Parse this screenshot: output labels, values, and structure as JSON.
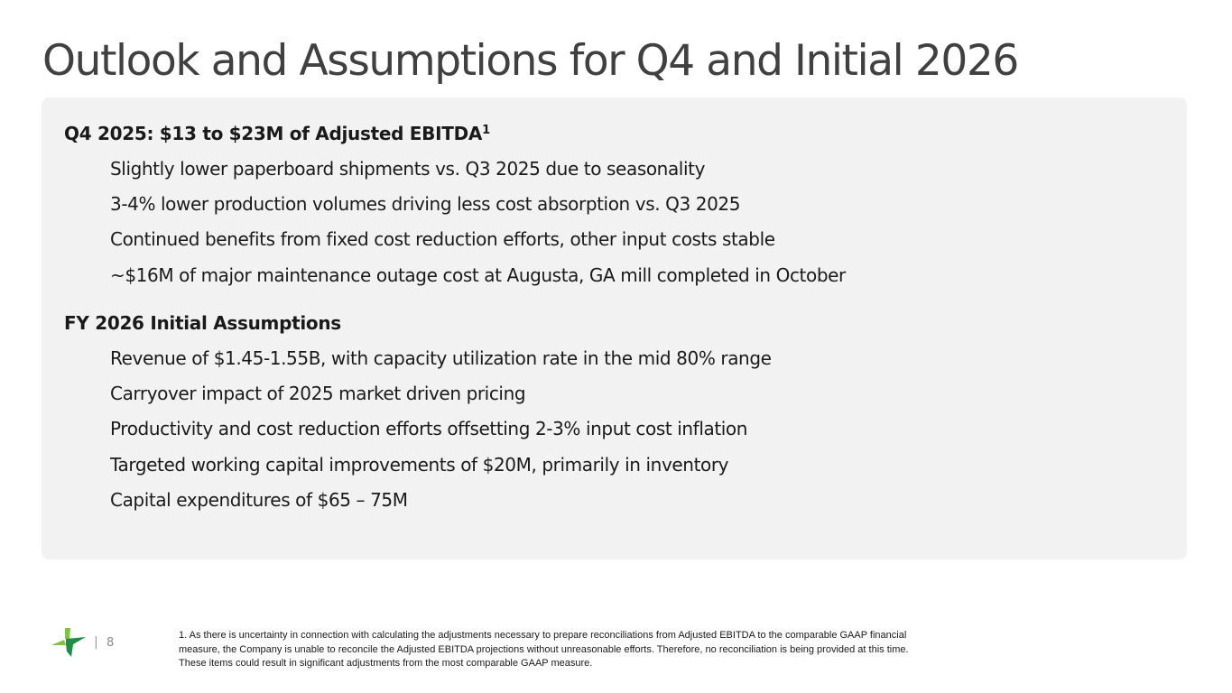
{
  "slide": {
    "title": "Outlook and Assumptions for Q4 and Initial 2026",
    "page_number": "8",
    "separator": "|"
  },
  "q4": {
    "heading": "Q4 2025: $13 to $23M of Adjusted EBITDA",
    "footnote_marker": "1",
    "bullets": [
      "Slightly lower paperboard shipments vs. Q3 2025 due to seasonality",
      "3-4% lower production volumes driving less cost absorption vs. Q3 2025",
      "Continued benefits from fixed cost reduction efforts, other input costs stable",
      "~$16M of major maintenance outage cost at Augusta, GA mill completed in October"
    ]
  },
  "fy2026": {
    "heading": "FY 2026 Initial Assumptions",
    "bullets": [
      "Revenue of $1.45-1.55B, with capacity utilization rate in the mid 80% range",
      "Carryover impact of 2025 market driven pricing",
      "Productivity and cost reduction efforts offsetting 2-3% input cost inflation",
      "Targeted working capital improvements of $20M, primarily in inventory",
      "Capital expenditures of $65 – 75M"
    ]
  },
  "footnote": {
    "lines": [
      "1. As there is uncertainty in connection with calculating the adjustments necessary to prepare reconciliations from Adjusted EBITDA to the comparable GAAP financial",
      "measure, the Company is unable to reconcile the Adjusted EBITDA projections without unreasonable efforts. Therefore, no reconciliation is being provided at this time.",
      "These items could result in significant adjustments from the most comparable GAAP measure."
    ]
  },
  "logo": {
    "icon": "company-logo-icon",
    "color_dark": "#1e8c4a",
    "color_light": "#7dc242"
  }
}
